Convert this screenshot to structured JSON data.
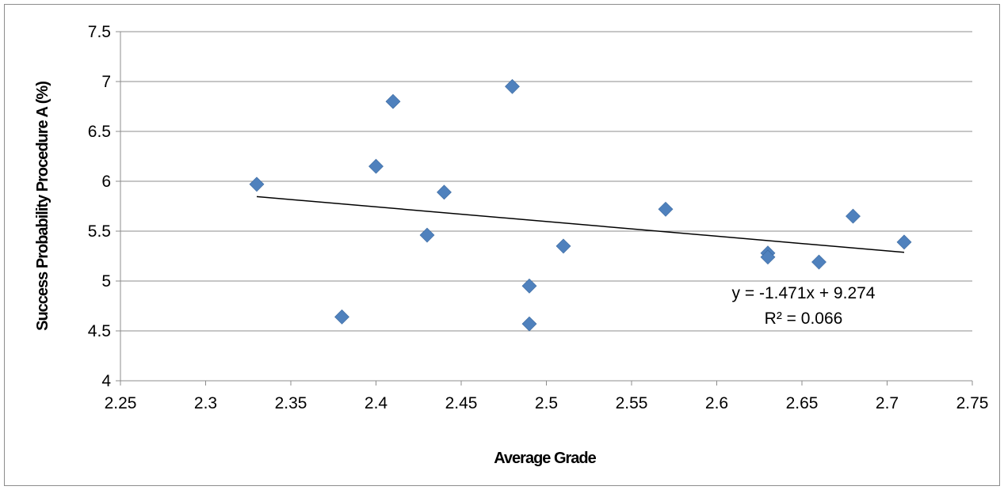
{
  "chart_data": {
    "type": "scatter",
    "xlabel": "Average Grade",
    "ylabel": "Success Probability Procedure A (%)",
    "xlim": [
      2.25,
      2.75
    ],
    "ylim": [
      4,
      7.5
    ],
    "xticks": [
      2.25,
      2.3,
      2.35,
      2.4,
      2.45,
      2.5,
      2.55,
      2.6,
      2.65,
      2.7,
      2.75
    ],
    "yticks": [
      4,
      4.5,
      5,
      5.5,
      6,
      6.5,
      7,
      7.5
    ],
    "xtick_labels": [
      "2.25",
      "2.3",
      "2.35",
      "2.4",
      "2.45",
      "2.5",
      "2.55",
      "2.6",
      "2.65",
      "2.7",
      "2.75"
    ],
    "ytick_labels": [
      "4",
      "4.5",
      "5",
      "5.5",
      "6",
      "6.5",
      "7",
      "7.5"
    ],
    "grid": "horizontal",
    "marker_color": "#4f81bd",
    "trendline_color": "#000000",
    "points": [
      {
        "x": 2.33,
        "y": 5.97
      },
      {
        "x": 2.38,
        "y": 4.64
      },
      {
        "x": 2.4,
        "y": 6.15
      },
      {
        "x": 2.41,
        "y": 6.8
      },
      {
        "x": 2.43,
        "y": 5.46
      },
      {
        "x": 2.44,
        "y": 5.89
      },
      {
        "x": 2.48,
        "y": 6.95
      },
      {
        "x": 2.49,
        "y": 4.95
      },
      {
        "x": 2.49,
        "y": 4.57
      },
      {
        "x": 2.51,
        "y": 5.35
      },
      {
        "x": 2.57,
        "y": 5.72
      },
      {
        "x": 2.63,
        "y": 5.28
      },
      {
        "x": 2.63,
        "y": 5.24
      },
      {
        "x": 2.66,
        "y": 5.19
      },
      {
        "x": 2.68,
        "y": 5.65
      },
      {
        "x": 2.71,
        "y": 5.39
      }
    ],
    "trendline": {
      "slope": -1.471,
      "intercept": 9.274,
      "x_range": [
        2.33,
        2.71
      ],
      "equation": "y = -1.471x + 9.274",
      "r_squared": "R² = 0.066"
    }
  }
}
